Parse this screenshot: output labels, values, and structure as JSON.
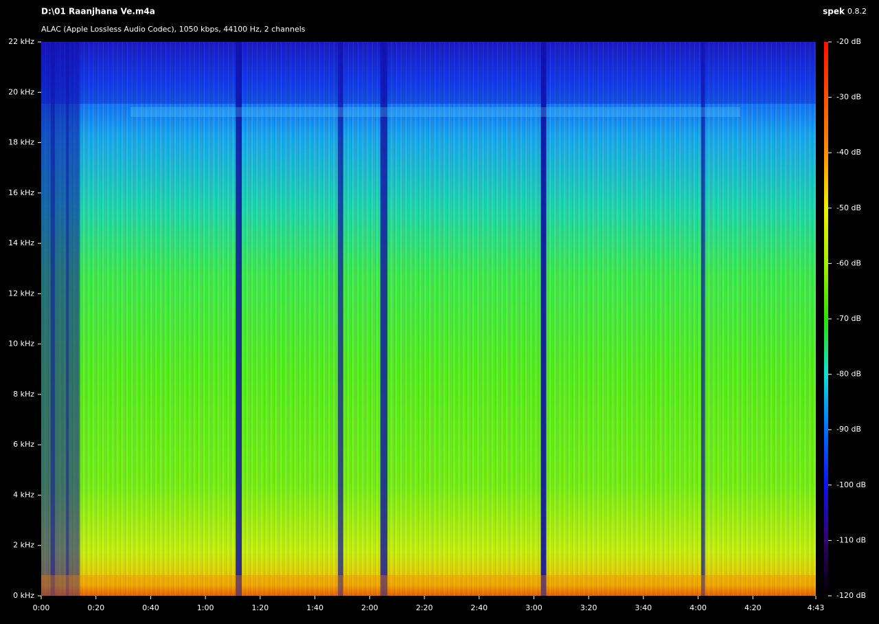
{
  "chart_data": {
    "type": "spectrogram",
    "title": "D:\\01 Raanjhana Ve.m4a",
    "subtitle": "ALAC (Apple Lossless Audio Codec), 1050 kbps, 44100 Hz, 2 channels",
    "app_name": "spek",
    "app_version": "0.8.2",
    "xlim": [
      0,
      283
    ],
    "xticks": [
      {
        "value": 0,
        "label": "0:00"
      },
      {
        "value": 20,
        "label": "0:20"
      },
      {
        "value": 40,
        "label": "0:40"
      },
      {
        "value": 60,
        "label": "1:00"
      },
      {
        "value": 80,
        "label": "1:20"
      },
      {
        "value": 100,
        "label": "1:40"
      },
      {
        "value": 120,
        "label": "2:00"
      },
      {
        "value": 140,
        "label": "2:20"
      },
      {
        "value": 160,
        "label": "2:40"
      },
      {
        "value": 180,
        "label": "3:00"
      },
      {
        "value": 200,
        "label": "3:20"
      },
      {
        "value": 220,
        "label": "3:40"
      },
      {
        "value": 240,
        "label": "4:00"
      },
      {
        "value": 260,
        "label": "4:20"
      },
      {
        "value": 283,
        "label": "4:43"
      }
    ],
    "ylim": [
      0,
      22
    ],
    "yticks": [
      {
        "value": 0,
        "label": "0 kHz"
      },
      {
        "value": 2,
        "label": "2 kHz"
      },
      {
        "value": 4,
        "label": "4 kHz"
      },
      {
        "value": 6,
        "label": "6 kHz"
      },
      {
        "value": 8,
        "label": "8 kHz"
      },
      {
        "value": 10,
        "label": "10 kHz"
      },
      {
        "value": 12,
        "label": "12 kHz"
      },
      {
        "value": 14,
        "label": "14 kHz"
      },
      {
        "value": 16,
        "label": "16 kHz"
      },
      {
        "value": 18,
        "label": "18 kHz"
      },
      {
        "value": 20,
        "label": "20 kHz"
      },
      {
        "value": 22,
        "label": "22 kHz"
      }
    ],
    "zlim": [
      -120,
      -20
    ],
    "zticks": [
      {
        "value": -20,
        "label": "-20 dB"
      },
      {
        "value": -30,
        "label": "-30 dB"
      },
      {
        "value": -40,
        "label": "-40 dB"
      },
      {
        "value": -50,
        "label": "-50 dB"
      },
      {
        "value": -60,
        "label": "-60 dB"
      },
      {
        "value": -70,
        "label": "-70 dB"
      },
      {
        "value": -80,
        "label": "-80 dB"
      },
      {
        "value": -90,
        "label": "-90 dB"
      },
      {
        "value": -100,
        "label": "-100 dB"
      },
      {
        "value": -110,
        "label": "-110 dB"
      },
      {
        "value": -120,
        "label": "-120 dB"
      }
    ]
  }
}
